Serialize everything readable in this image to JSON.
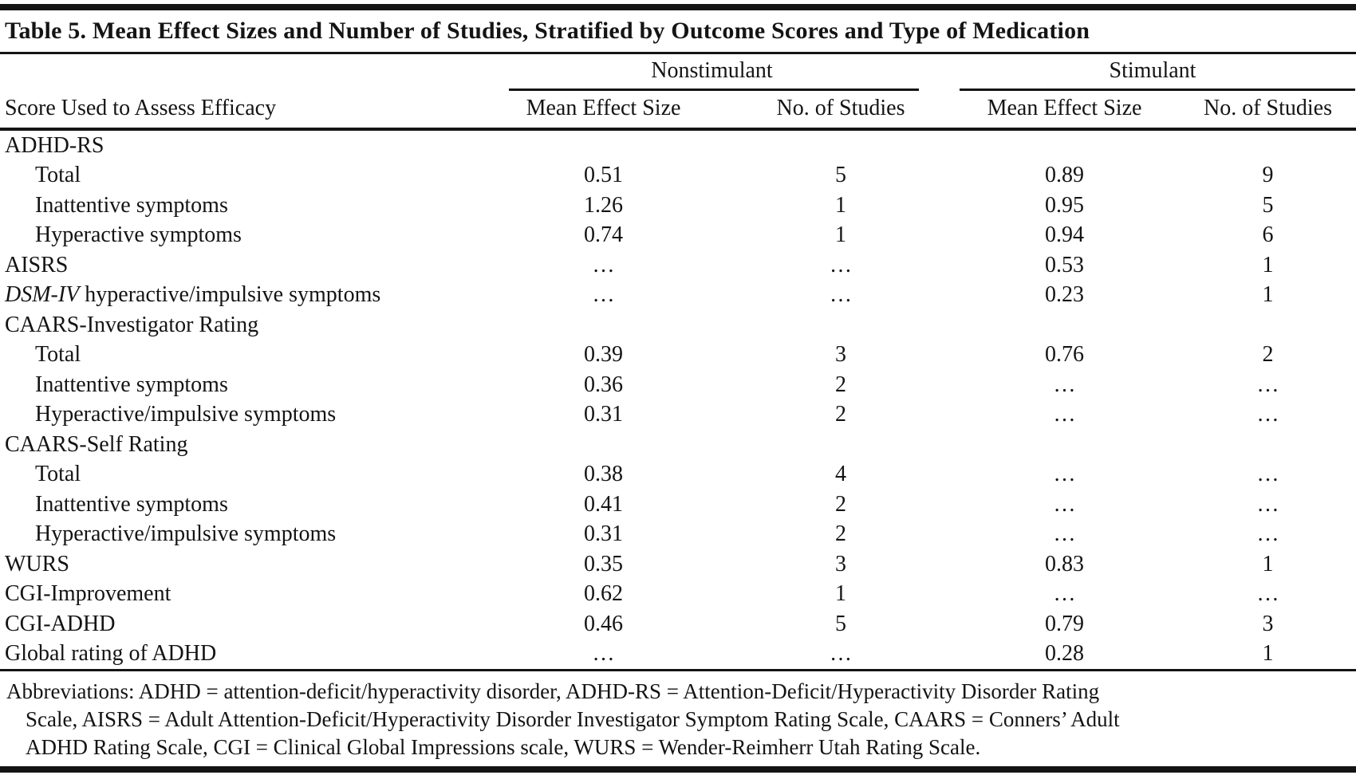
{
  "title": "Table 5. Mean Effect Sizes and Number of Studies, Stratified by Outcome Scores and Type of Medication",
  "columns": {
    "stub": "Score Used to Assess Efficacy",
    "group_nonstimulant": "Nonstimulant",
    "group_stimulant": "Stimulant",
    "sub": [
      "Mean Effect Size",
      "No. of Studies",
      "Mean Effect Size",
      "No. of Studies"
    ]
  },
  "table": {
    "rows": [
      {
        "label": "ADHD-RS",
        "cells": [
          "",
          "",
          "",
          ""
        ]
      },
      {
        "label": "Total",
        "cells": [
          "0.51",
          "5",
          "0.89",
          "9"
        ]
      },
      {
        "label": "Inattentive symptoms",
        "cells": [
          "1.26",
          "1",
          "0.95",
          "5"
        ]
      },
      {
        "label": "Hyperactive symptoms",
        "cells": [
          "0.74",
          "1",
          "0.94",
          "6"
        ]
      },
      {
        "label": "AISRS",
        "cells": [
          "…",
          "…",
          "0.53",
          "1"
        ]
      },
      {
        "label_italic": "DSM-IV",
        "label_rest": " hyperactive/impulsive symptoms",
        "cells": [
          "…",
          "…",
          "0.23",
          "1"
        ]
      },
      {
        "label": "CAARS-Investigator Rating",
        "cells": [
          "",
          "",
          "",
          ""
        ]
      },
      {
        "label": "Total",
        "cells": [
          "0.39",
          "3",
          "0.76",
          "2"
        ]
      },
      {
        "label": "Inattentive symptoms",
        "cells": [
          "0.36",
          "2",
          "…",
          "…"
        ]
      },
      {
        "label": "Hyperactive/impulsive symptoms",
        "cells": [
          "0.31",
          "2",
          "…",
          "…"
        ]
      },
      {
        "label": "CAARS-Self Rating",
        "cells": [
          "",
          "",
          "",
          ""
        ]
      },
      {
        "label": "Total",
        "cells": [
          "0.38",
          "4",
          "…",
          "…"
        ]
      },
      {
        "label": "Inattentive symptoms",
        "cells": [
          "0.41",
          "2",
          "…",
          "…"
        ]
      },
      {
        "label": "Hyperactive/impulsive symptoms",
        "cells": [
          "0.31",
          "2",
          "…",
          "…"
        ]
      },
      {
        "label": "WURS",
        "cells": [
          "0.35",
          "3",
          "0.83",
          "1"
        ]
      },
      {
        "label": "CGI-Improvement",
        "cells": [
          "0.62",
          "1",
          "…",
          "…"
        ]
      },
      {
        "label": "CGI-ADHD",
        "cells": [
          "0.46",
          "5",
          "0.79",
          "3"
        ]
      },
      {
        "label": "Global rating of ADHD",
        "cells": [
          "…",
          "…",
          "0.28",
          "1"
        ]
      }
    ]
  },
  "footnote": {
    "lines": [
      "Abbreviations: ADHD = attention-deficit/hyperactivity disorder, ADHD-RS = Attention-Deficit/Hyperactivity Disorder Rating",
      "Scale, AISRS = Adult Attention-Deficit/Hyperactivity Disorder Investigator Symptom Rating Scale, CAARS = Conners’ Adult",
      "ADHD Rating Scale, CGI = Clinical Global Impressions scale, WURS = Wender-Reimherr Utah Rating Scale."
    ]
  },
  "colors": {
    "text": "#141414",
    "rule": "#141414",
    "background": "#ffffff"
  }
}
